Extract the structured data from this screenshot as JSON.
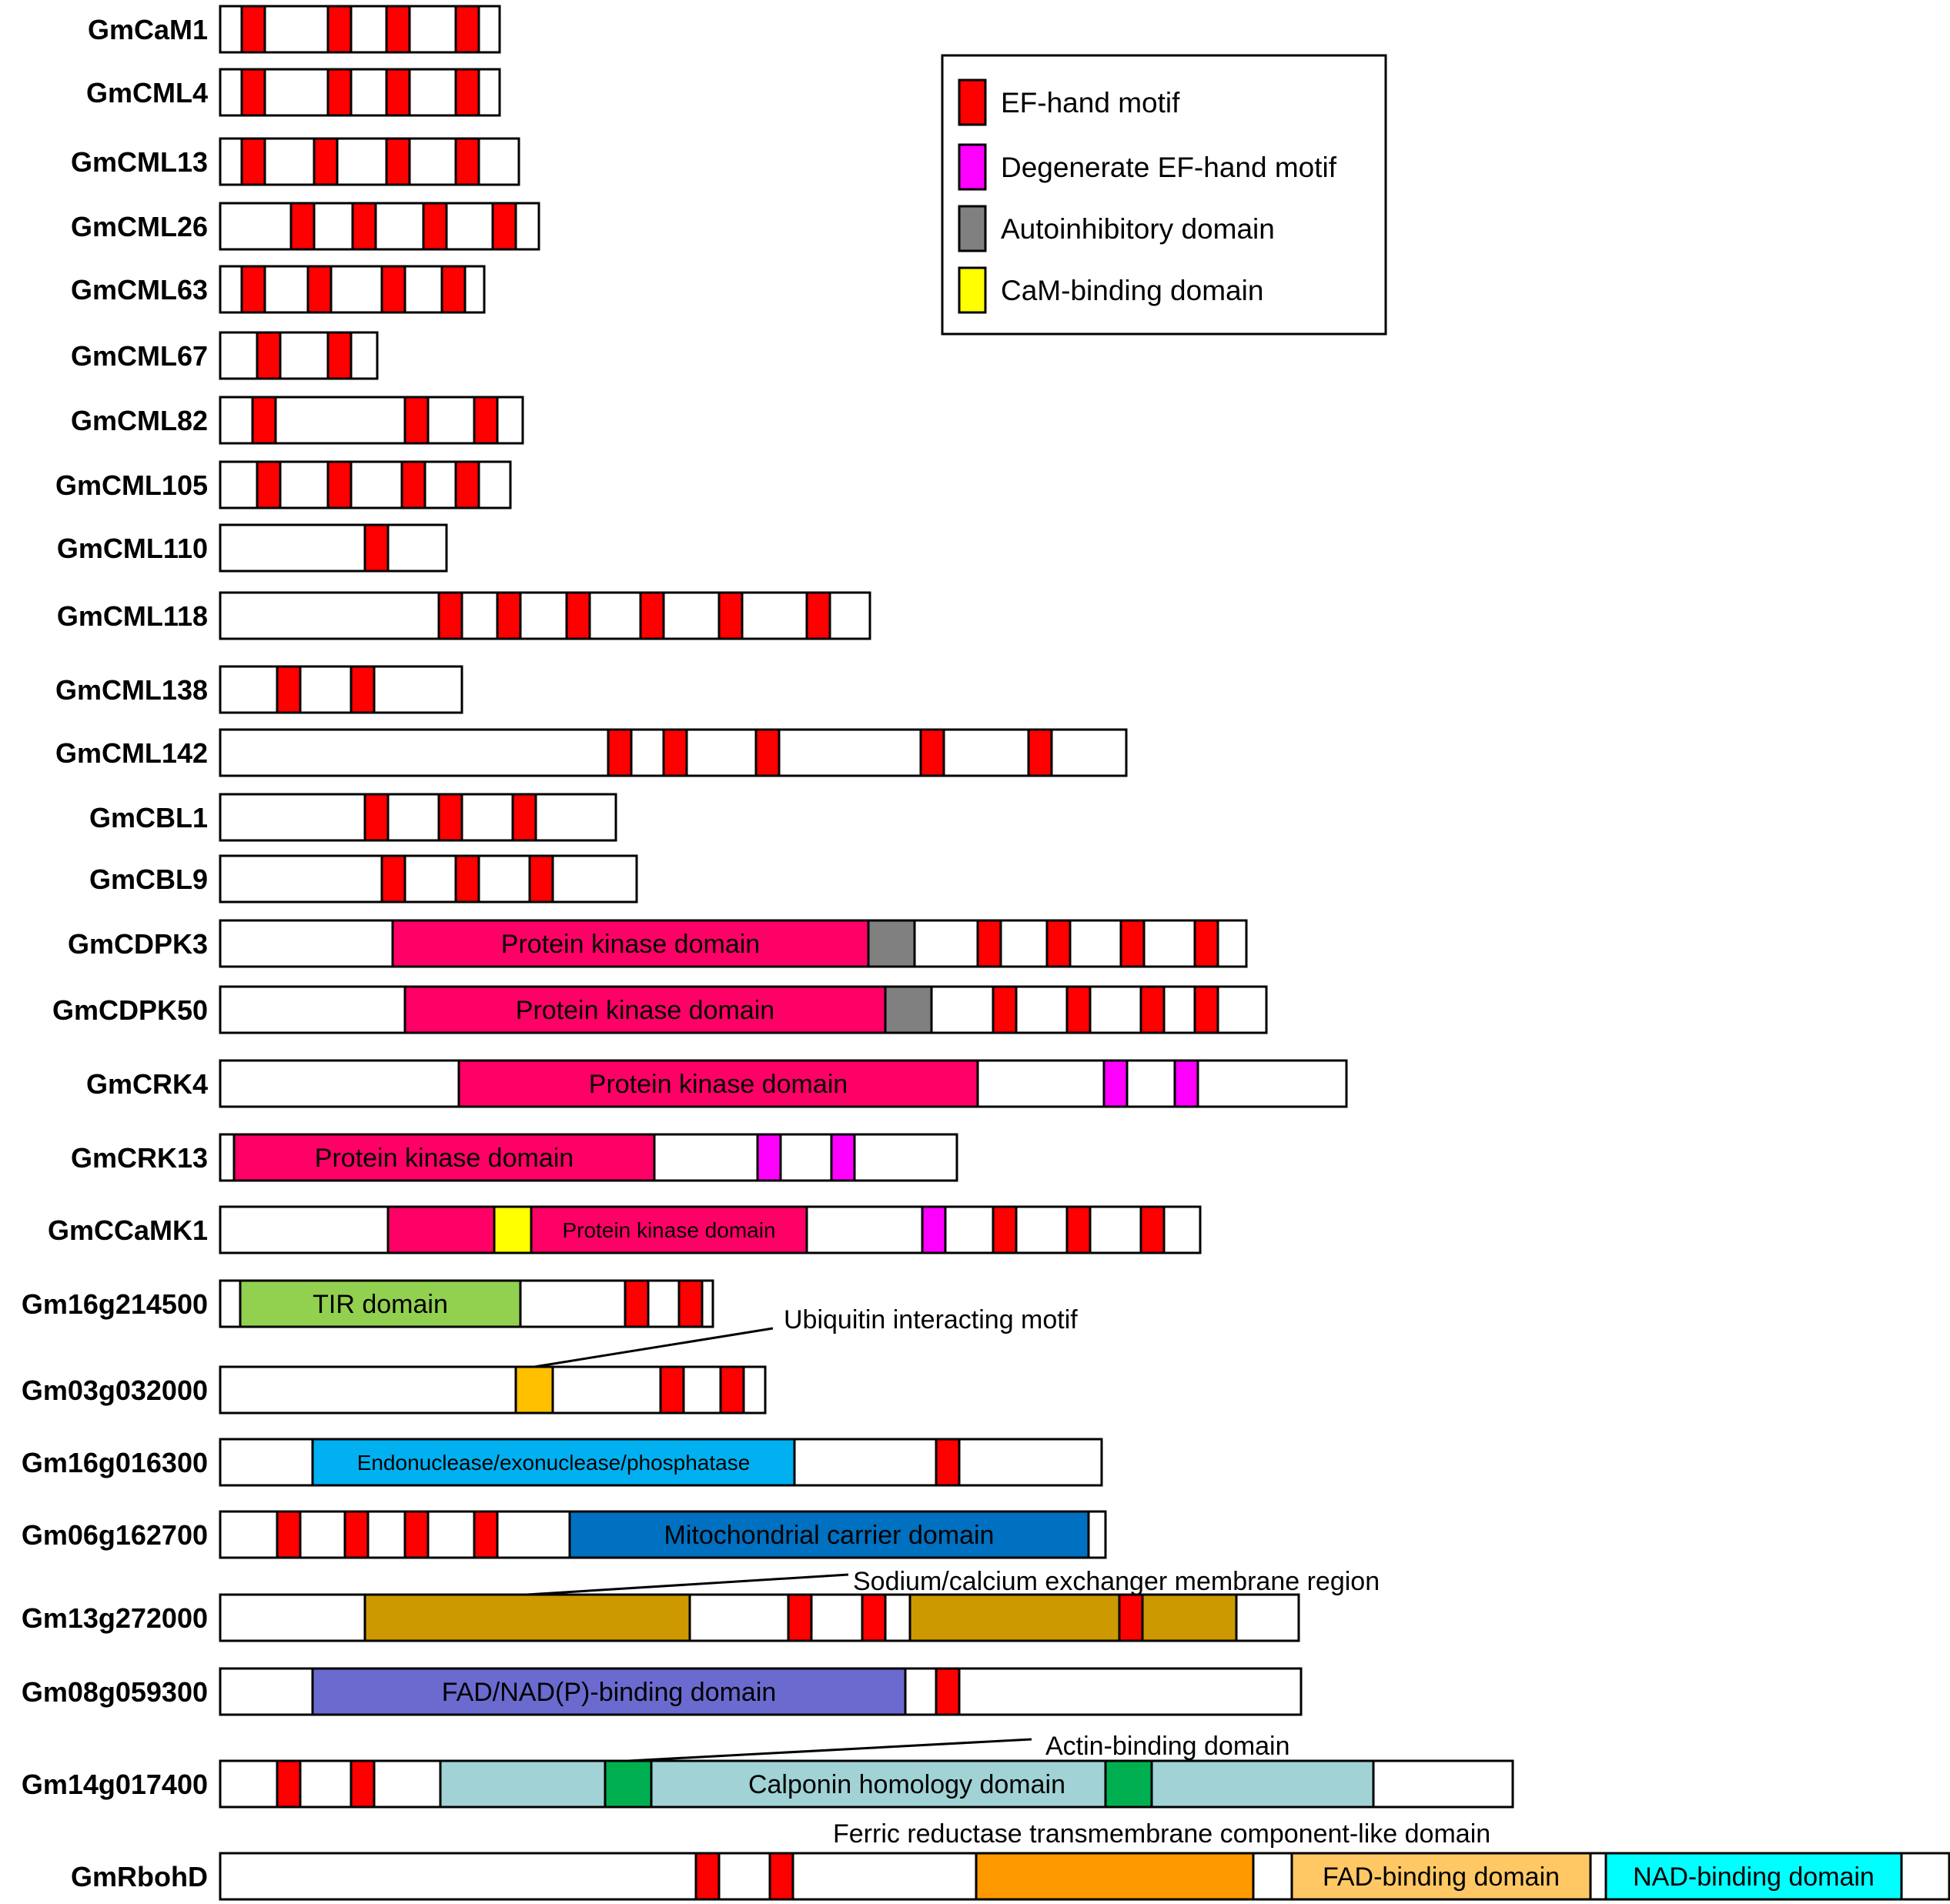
{
  "colors": {
    "ef_hand": "#ff0000",
    "degenerate_ef": "#ff00ff",
    "autoinhibitory": "#808080",
    "cam_binding": "#ffff00",
    "kinase": "#ff0066",
    "tir": "#92d050",
    "uim": "#ffc000",
    "endo": "#00b0f0",
    "mito": "#0070c0",
    "sodium": "#cc9900",
    "fad_nadp": "#6a6acf",
    "calponin": "#a0d2d6",
    "actin": "#00b050",
    "ferric": "#ff9900",
    "fad_binding": "#ffc864",
    "nad_binding": "#00ffff",
    "outline": "#000000",
    "blank": "#ffffff"
  },
  "legend": {
    "items": [
      {
        "label": "EF-hand motif",
        "color_key": "ef_hand"
      },
      {
        "label": "Degenerate EF-hand motif",
        "color_key": "degenerate_ef"
      },
      {
        "label": "Autoinhibitory domain",
        "color_key": "autoinhibitory"
      },
      {
        "label": "CaM-binding domain",
        "color_key": "cam_binding"
      }
    ]
  },
  "proteins": [
    {
      "name": "GmCaM1"
    },
    {
      "name": "GmCML4"
    },
    {
      "name": "GmCML13"
    },
    {
      "name": "GmCML26"
    },
    {
      "name": "GmCML63"
    },
    {
      "name": "GmCML67"
    },
    {
      "name": "GmCML82"
    },
    {
      "name": "GmCML105"
    },
    {
      "name": "GmCML110"
    },
    {
      "name": "GmCML118"
    },
    {
      "name": "GmCML138"
    },
    {
      "name": "GmCML142"
    },
    {
      "name": "GmCBL1"
    },
    {
      "name": "GmCBL9"
    },
    {
      "name": "GmCDPK3"
    },
    {
      "name": "GmCDPK50"
    },
    {
      "name": "GmCRK4"
    },
    {
      "name": "GmCRK13"
    },
    {
      "name": "GmCCaMK1"
    },
    {
      "name": "Gm16g214500"
    },
    {
      "name": "Gm03g032000"
    },
    {
      "name": "Gm16g016300"
    },
    {
      "name": "Gm06g162700"
    },
    {
      "name": "Gm13g272000"
    },
    {
      "name": "Gm08g059300"
    },
    {
      "name": "Gm14g017400"
    },
    {
      "name": "GmRbohD"
    }
  ],
  "domain_labels": {
    "kinase": "Protein kinase domain",
    "tir": "TIR domain",
    "endo": "Endonuclease/exonuclease/phosphatase",
    "mito": "Mitochondrial carrier domain",
    "fad_nadp": "FAD/NAD(P)-binding domain",
    "calponin": "Calponin homology domain",
    "fad_binding": "FAD-binding domain",
    "nad_binding": "NAD-binding domain"
  },
  "callouts": {
    "uim": "Ubiquitin interacting motif",
    "sodium": "Sodium/calcium exchanger membrane region",
    "actin": "Actin-binding domain",
    "ferric": "Ferric reductase transmembrane component-like domain"
  }
}
